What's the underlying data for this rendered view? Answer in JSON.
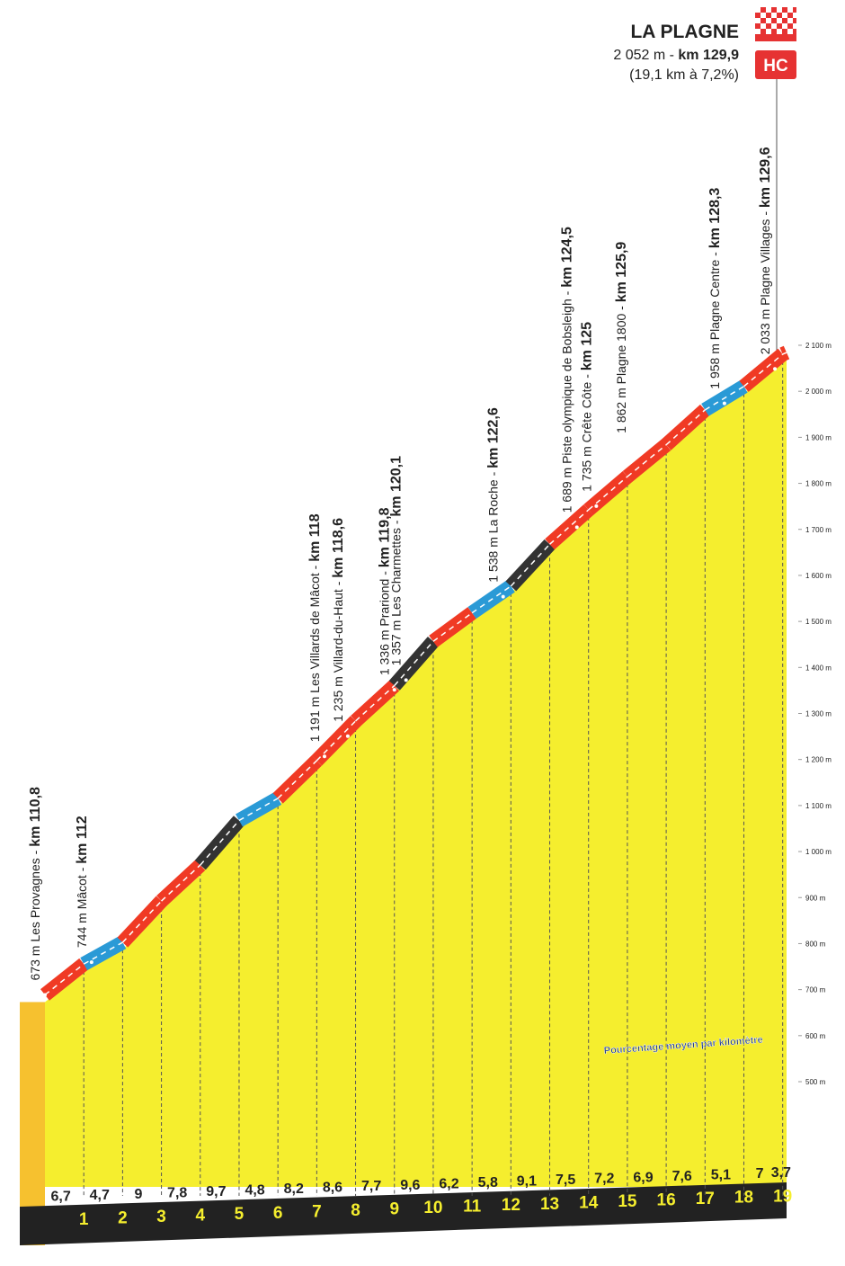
{
  "chart_data": {
    "type": "profile",
    "title": "LA PLAGNE",
    "summit_altitude_label": "2 052 m -",
    "summit_km_label": "km 129,9",
    "climb_summary": "(19,1 km à 7,2%)",
    "category": "HC",
    "annotation": "Pourcentage moyen par kilomètre",
    "xlim": [
      110.8,
      129.9
    ],
    "km_markers": [
      1,
      2,
      3,
      4,
      5,
      6,
      7,
      8,
      9,
      10,
      11,
      12,
      13,
      14,
      15,
      16,
      17,
      18,
      19
    ],
    "values": [
      6.7,
      4.7,
      9,
      7.8,
      9.7,
      4.8,
      8.2,
      8.6,
      7.7,
      9.6,
      6.2,
      5.8,
      9.1,
      7.5,
      7.2,
      6.9,
      7.6,
      5.1,
      7,
      3.7
    ],
    "value_labels": [
      "6,7",
      "4,7",
      "9",
      "7,8",
      "9,7",
      "4,8",
      "8,2",
      "8,6",
      "7,7",
      "9,6",
      "6,2",
      "5,8",
      "9,1",
      "7,5",
      "7,2",
      "6,9",
      "7,6",
      "5,1",
      "7",
      "3,7"
    ],
    "segment_colors": [
      "#f03a24",
      "#2a9ad6",
      "#f03a24",
      "#f03a24",
      "#333333",
      "#2a9ad6",
      "#f03a24",
      "#f03a24",
      "#f03a24",
      "#333333",
      "#f03a24",
      "#2a9ad6",
      "#333333",
      "#f03a24",
      "#f03a24",
      "#f03a24",
      "#f03a24",
      "#2a9ad6",
      "#f03a24",
      "#f03a24"
    ],
    "fill_color": "#f5ee2e",
    "waypoints": [
      {
        "altitude": 673,
        "km": 110.8,
        "label": "673 m Les Provagnes -",
        "km_label": "km 110,8"
      },
      {
        "altitude": 744,
        "km": 112,
        "label": "744 m Mâcot -",
        "km_label": "km 112"
      },
      {
        "altitude": 1191,
        "km": 118,
        "label": "1 191 m  Les Villards de Mâcot -",
        "km_label": "km 118"
      },
      {
        "altitude": 1235,
        "km": 118.6,
        "label": "1 235 m Villard-du-Haut -",
        "km_label": "km 118,6"
      },
      {
        "altitude": 1336,
        "km": 119.8,
        "label": "1 336 m Prariond -",
        "km_label": "km 119,8"
      },
      {
        "altitude": 1357,
        "km": 120.1,
        "label": "1 357 m Les Charmettes -",
        "km_label": "km 120,1"
      },
      {
        "altitude": 1538,
        "km": 122.6,
        "label": "1 538 m La Roche -",
        "km_label": "km 122,6"
      },
      {
        "altitude": 1689,
        "km": 124.5,
        "label": "1 689 m Piste olympique de Bobsleigh -",
        "km_label": "km 124,5"
      },
      {
        "altitude": 1735,
        "km": 125,
        "label": "1 735 m Crête Côte -",
        "km_label": "km 125"
      },
      {
        "altitude": 1862,
        "km": 125.9,
        "label": "1 862 m Plagne 1800 -",
        "km_label": "km 125,9"
      },
      {
        "altitude": 1958,
        "km": 128.3,
        "label": "1 958 m Plagne Centre -",
        "km_label": "km 128,3"
      },
      {
        "altitude": 2033,
        "km": 129.6,
        "label": "2 033 m Plagne Villages -",
        "km_label": "km 129,6"
      }
    ],
    "ylim": [
      500,
      2100
    ],
    "yticks": [
      {
        "value": 500,
        "label": "500 m"
      },
      {
        "value": 600,
        "label": "600 m"
      },
      {
        "value": 700,
        "label": "700 m"
      },
      {
        "value": 800,
        "label": "800 m"
      },
      {
        "value": 900,
        "label": "900 m"
      },
      {
        "value": 1000,
        "label": "1 000 m"
      },
      {
        "value": 1100,
        "label": "1 100 m"
      },
      {
        "value": 1200,
        "label": "1 200 m"
      },
      {
        "value": 1300,
        "label": "1 300 m"
      },
      {
        "value": 1400,
        "label": "1 400 m"
      },
      {
        "value": 1500,
        "label": "1 500 m"
      },
      {
        "value": 1600,
        "label": "1 600 m"
      },
      {
        "value": 1700,
        "label": "1 700 m"
      },
      {
        "value": 1800,
        "label": "1 800 m"
      },
      {
        "value": 1900,
        "label": "1 900 m"
      },
      {
        "value": 2000,
        "label": "2 000 m"
      },
      {
        "value": 2100,
        "label": "2 100 m"
      }
    ]
  }
}
